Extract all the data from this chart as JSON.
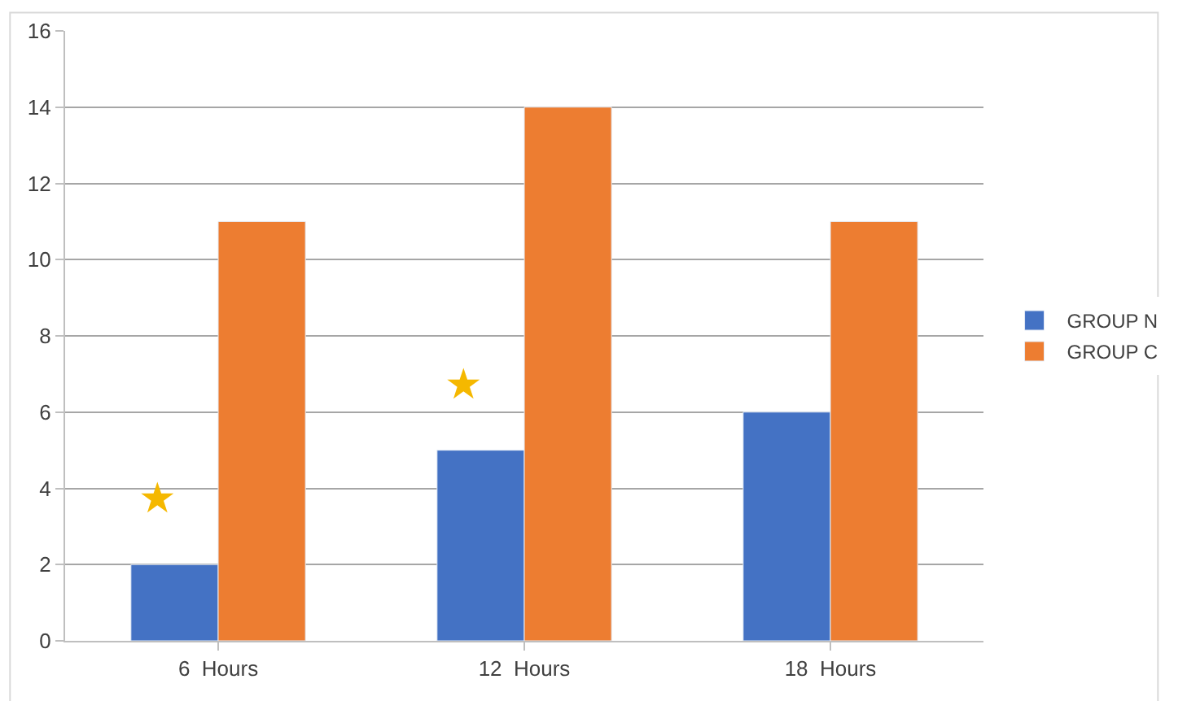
{
  "chart_data": {
    "type": "bar",
    "categories": [
      "6  Hours",
      "12  Hours",
      "18  Hours"
    ],
    "series": [
      {
        "name": "GROUP N",
        "color": "#4472c4",
        "values": [
          2,
          5,
          6
        ]
      },
      {
        "name": "GROUP C",
        "color": "#ed7d31",
        "values": [
          11,
          14,
          11
        ]
      }
    ],
    "ylim": [
      0,
      16
    ],
    "yticks": [
      0,
      2,
      4,
      6,
      8,
      10,
      12,
      14,
      16
    ],
    "grid": "y",
    "legend": "right",
    "annotations": [
      {
        "text": "★",
        "x": "6  Hours",
        "y": 3.7
      },
      {
        "text": "★",
        "x": "12  Hours",
        "y": 6.7
      }
    ]
  }
}
